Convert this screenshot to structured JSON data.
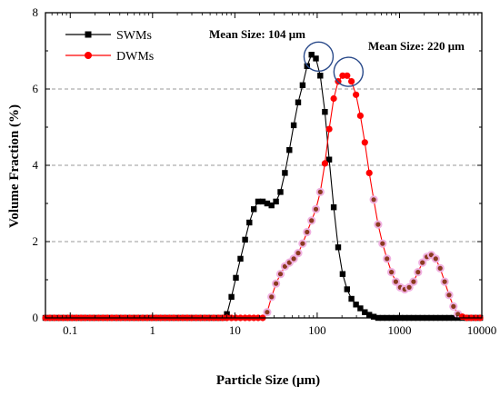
{
  "chart_data": {
    "type": "line",
    "xlabel": "Particle Size (μm)",
    "ylabel": "Volume  Fraction (%)",
    "xscale": "log",
    "xlim": [
      0.05,
      10000
    ],
    "ylim": [
      0,
      8
    ],
    "x_ticks": [
      0.1,
      1,
      10,
      100,
      1000,
      10000
    ],
    "x_tick_labels": [
      "0.1",
      "1",
      "10",
      "100",
      "1000",
      "10000"
    ],
    "y_ticks": [
      0,
      2,
      4,
      6,
      8
    ],
    "y_tick_labels": [
      "0",
      "2",
      "4",
      "6",
      "8"
    ],
    "grid": "horizontal dashed",
    "legend_position": "top-left",
    "series": [
      {
        "name": "SWMs",
        "color": "#000000",
        "marker": "square",
        "x": [
          0.05,
          0.0566,
          0.064,
          0.0725,
          0.082,
          0.0929,
          0.105,
          0.119,
          0.135,
          0.152,
          0.173,
          0.195,
          0.221,
          0.25,
          0.283,
          0.32,
          0.363,
          0.41,
          0.465,
          0.526,
          0.595,
          0.673,
          0.762,
          0.863,
          0.977,
          1.106,
          1.252,
          1.417,
          1.604,
          1.815,
          2.054,
          2.325,
          2.632,
          2.979,
          3.372,
          3.817,
          4.32,
          4.889,
          5.534,
          6.264,
          7.08,
          8.0,
          9.1,
          10.3,
          11.7,
          13.3,
          15.0,
          17.0,
          19.2,
          21.8,
          24.7,
          27.9,
          31.6,
          35.8,
          40.5,
          45.9,
          51.9,
          58.8,
          66.6,
          75.4,
          85.3,
          96.6,
          109,
          124,
          140,
          159,
          180,
          204,
          231,
          261,
          296,
          335,
          379,
          429,
          486,
          550,
          623,
          705,
          798,
          903,
          1022,
          1157,
          1310,
          1483,
          1679,
          1900,
          2151,
          2435,
          2757,
          3121,
          3533,
          3999,
          4527,
          5125,
          5802,
          6568,
          7436,
          8418,
          9530
        ],
        "y": [
          0,
          0,
          0,
          0,
          0,
          0,
          0,
          0,
          0,
          0,
          0,
          0,
          0,
          0,
          0,
          0,
          0,
          0,
          0,
          0,
          0,
          0,
          0,
          0,
          0,
          0,
          0,
          0,
          0,
          0,
          0,
          0,
          0,
          0,
          0,
          0,
          0,
          0,
          0,
          0,
          0,
          0.1,
          0.55,
          1.05,
          1.55,
          2.05,
          2.5,
          2.85,
          3.05,
          3.05,
          3.0,
          2.95,
          3.05,
          3.3,
          3.8,
          4.4,
          5.05,
          5.65,
          6.1,
          6.6,
          6.9,
          6.8,
          6.35,
          5.4,
          4.15,
          2.9,
          1.85,
          1.15,
          0.75,
          0.5,
          0.35,
          0.25,
          0.15,
          0.08,
          0.03,
          0,
          0,
          0,
          0,
          0,
          0,
          0,
          0,
          0,
          0,
          0,
          0,
          0,
          0,
          0,
          0,
          0,
          0,
          0,
          0,
          0,
          0,
          0,
          0
        ]
      },
      {
        "name": "DWMs",
        "color": "#ff0000",
        "marker": "circle",
        "x": [
          0.05,
          0.0566,
          0.064,
          0.0725,
          0.082,
          0.0929,
          0.105,
          0.119,
          0.135,
          0.152,
          0.173,
          0.195,
          0.221,
          0.25,
          0.283,
          0.32,
          0.363,
          0.41,
          0.465,
          0.526,
          0.595,
          0.673,
          0.762,
          0.863,
          0.977,
          1.106,
          1.252,
          1.417,
          1.604,
          1.815,
          2.054,
          2.325,
          2.632,
          2.979,
          3.372,
          3.817,
          4.32,
          4.889,
          5.534,
          6.264,
          7.08,
          8.0,
          9.1,
          10.3,
          11.7,
          13.3,
          15.0,
          17.0,
          19.2,
          21.8,
          24.7,
          27.9,
          31.6,
          35.8,
          40.5,
          45.9,
          51.9,
          58.8,
          66.6,
          75.4,
          85.3,
          96.6,
          109,
          124,
          140,
          159,
          180,
          204,
          231,
          261,
          296,
          335,
          379,
          429,
          486,
          550,
          623,
          705,
          798,
          903,
          1022,
          1157,
          1310,
          1483,
          1679,
          1900,
          2151,
          2435,
          2757,
          3121,
          3533,
          3999,
          4527,
          5125,
          5802,
          6568,
          7436,
          8418,
          9530
        ],
        "y": [
          0,
          0,
          0,
          0,
          0,
          0,
          0,
          0,
          0,
          0,
          0,
          0,
          0,
          0,
          0,
          0,
          0,
          0,
          0,
          0,
          0,
          0,
          0,
          0,
          0,
          0,
          0,
          0,
          0,
          0,
          0,
          0,
          0,
          0,
          0,
          0,
          0,
          0,
          0,
          0,
          0,
          0,
          0,
          0,
          0,
          0,
          0,
          0,
          0,
          0,
          0.15,
          0.55,
          0.9,
          1.15,
          1.35,
          1.45,
          1.55,
          1.7,
          1.95,
          2.25,
          2.55,
          2.85,
          3.3,
          4.05,
          4.95,
          5.75,
          6.2,
          6.35,
          6.35,
          6.2,
          5.85,
          5.3,
          4.6,
          3.8,
          3.1,
          2.45,
          1.95,
          1.55,
          1.2,
          0.95,
          0.8,
          0.75,
          0.8,
          0.95,
          1.2,
          1.45,
          1.6,
          1.65,
          1.55,
          1.3,
          0.95,
          0.6,
          0.3,
          0.1,
          0.03,
          0,
          0,
          0,
          0
        ]
      }
    ],
    "annotations": [
      {
        "text": "Mean Size: 104 μm",
        "x": 104
      },
      {
        "text": "Mean Size: 220 μm",
        "x": 220
      }
    ],
    "highlight_circles": [
      {
        "x": 104,
        "y": 6.85
      },
      {
        "x": 240,
        "y": 6.45
      }
    ]
  }
}
